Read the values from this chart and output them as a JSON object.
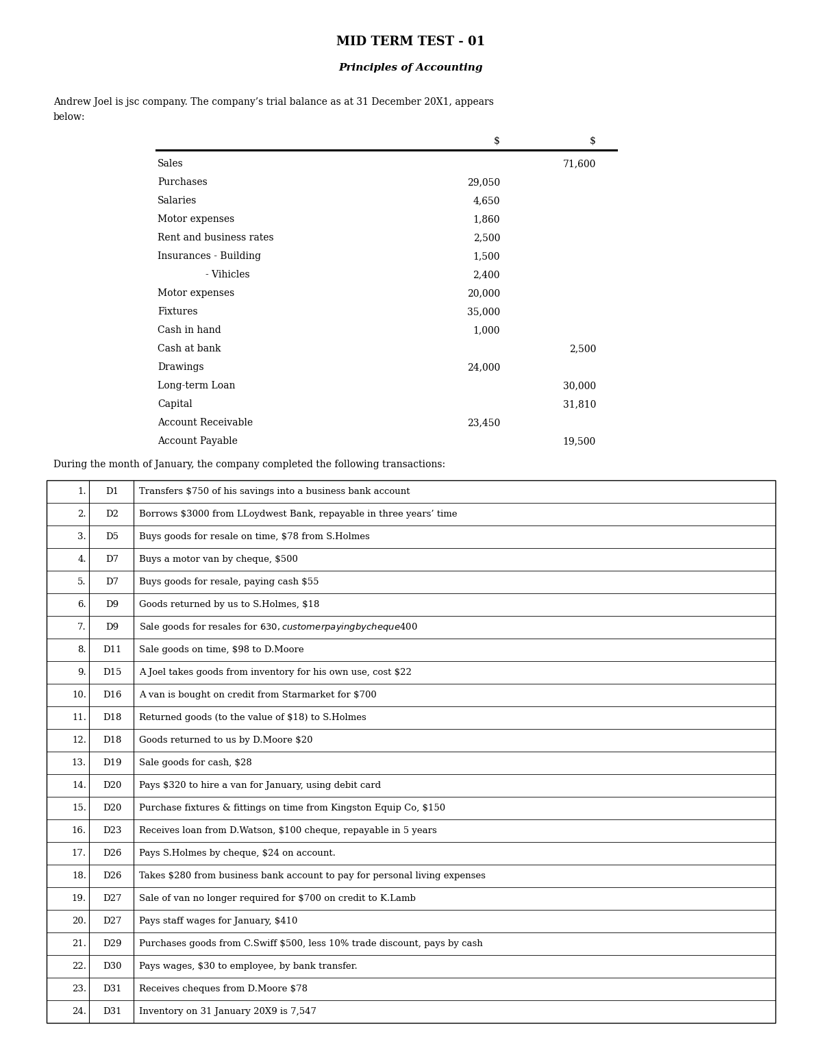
{
  "title": "MID TERM TEST - 01",
  "subtitle": "Principles of Accounting",
  "intro_line1": "Andrew Joel is jsc company. The company’s trial balance as at 31 December 20X1, appears",
  "intro_line2": "below:",
  "trial_balance": {
    "col1_header": "$",
    "col2_header": "$",
    "rows": [
      {
        "label": "Sales",
        "indent": 0,
        "dr": "",
        "cr": "71,600"
      },
      {
        "label": "Purchases",
        "indent": 0,
        "dr": "29,050",
        "cr": ""
      },
      {
        "label": "Salaries",
        "indent": 0,
        "dr": "4,650",
        "cr": ""
      },
      {
        "label": "Motor expenses",
        "indent": 0,
        "dr": "1,860",
        "cr": ""
      },
      {
        "label": "Rent and business rates",
        "indent": 0,
        "dr": "2,500",
        "cr": ""
      },
      {
        "label": "Insurances - Building",
        "indent": 0,
        "dr": "1,500",
        "cr": ""
      },
      {
        "label": "- Vihicles",
        "indent": 1,
        "dr": "2,400",
        "cr": ""
      },
      {
        "label": "Motor expenses",
        "indent": 0,
        "dr": "20,000",
        "cr": ""
      },
      {
        "label": "Fixtures",
        "indent": 0,
        "dr": "35,000",
        "cr": ""
      },
      {
        "label": "Cash in hand",
        "indent": 0,
        "dr": "1,000",
        "cr": ""
      },
      {
        "label": "Cash at bank",
        "indent": 0,
        "dr": "",
        "cr": "2,500"
      },
      {
        "label": "Drawings",
        "indent": 0,
        "dr": "24,000",
        "cr": ""
      },
      {
        "label": "Long-term Loan",
        "indent": 0,
        "dr": "",
        "cr": "30,000"
      },
      {
        "label": "Capital",
        "indent": 0,
        "dr": "",
        "cr": "31,810"
      },
      {
        "label": "Account Receivable",
        "indent": 0,
        "dr": "23,450",
        "cr": ""
      },
      {
        "label": "Account Payable",
        "indent": 0,
        "dr": "",
        "cr": "19,500"
      }
    ]
  },
  "transition_text": "During the month of January, the company completed the following transactions:",
  "transactions": [
    {
      "no": "1.",
      "day": "D1",
      "desc": "Transfers $750 of his savings into a business bank account"
    },
    {
      "no": "2.",
      "day": "D2",
      "desc": "Borrows $3000 from LLoydwest Bank, repayable in three years’ time"
    },
    {
      "no": "3.",
      "day": "D5",
      "desc": "Buys goods for resale on time, $78 from S.Holmes"
    },
    {
      "no": "4.",
      "day": "D7",
      "desc": "Buys a motor van by cheque, $500"
    },
    {
      "no": "5.",
      "day": "D7",
      "desc": "Buys goods for resale, paying cash $55"
    },
    {
      "no": "6.",
      "day": "D9",
      "desc": "Goods returned by us to S.Holmes, $18"
    },
    {
      "no": "7.",
      "day": "D9",
      "desc": "Sale goods for resales for $630, customer paying by cheque $400"
    },
    {
      "no": "8.",
      "day": "D11",
      "desc": "Sale goods on time, $98 to D.Moore"
    },
    {
      "no": "9.",
      "day": "D15",
      "desc": "A Joel takes goods from inventory for his own use, cost $22"
    },
    {
      "no": "10.",
      "day": "D16",
      "desc": "A van is bought on credit from Starmarket for $700"
    },
    {
      "no": "11.",
      "day": "D18",
      "desc": "Returned goods (to the value of $18) to S.Holmes"
    },
    {
      "no": "12.",
      "day": "D18",
      "desc": "Goods returned to us by D.Moore $20"
    },
    {
      "no": "13.",
      "day": "D19",
      "desc": "Sale goods for cash, $28"
    },
    {
      "no": "14.",
      "day": "D20",
      "desc": "Pays $320 to hire a van for January, using debit card"
    },
    {
      "no": "15.",
      "day": "D20",
      "desc": "Purchase fixtures & fittings on time from Kingston Equip Co, $150"
    },
    {
      "no": "16.",
      "day": "D23",
      "desc": "Receives loan from D.Watson, $100 cheque, repayable in 5 years"
    },
    {
      "no": "17.",
      "day": "D26",
      "desc": "Pays S.Holmes by cheque, $24 on account."
    },
    {
      "no": "18.",
      "day": "D26",
      "desc": "Takes $280 from business bank account to pay for personal living expenses"
    },
    {
      "no": "19.",
      "day": "D27",
      "desc": "Sale of van no longer required for $700 on credit to K.Lamb"
    },
    {
      "no": "20.",
      "day": "D27",
      "desc": "Pays staff wages for January, $410"
    },
    {
      "no": "21.",
      "day": "D29",
      "desc": "Purchases goods from C.Swiff $500, less 10% trade discount, pays by cash"
    },
    {
      "no": "22.",
      "day": "D30",
      "desc": "Pays wages, $30 to employee, by bank transfer."
    },
    {
      "no": "23.",
      "day": "D31",
      "desc": "Receives cheques from D.Moore $78"
    },
    {
      "no": "24.",
      "day": "D31",
      "desc": "Inventory on 31 January 20X9 is 7,547"
    }
  ],
  "bg_color": "#ffffff",
  "text_color": "#000000",
  "font_family": "DejaVu Serif",
  "title_fontsize": 13,
  "subtitle_fontsize": 11,
  "body_fontsize": 10,
  "table_fontsize": 9.5
}
